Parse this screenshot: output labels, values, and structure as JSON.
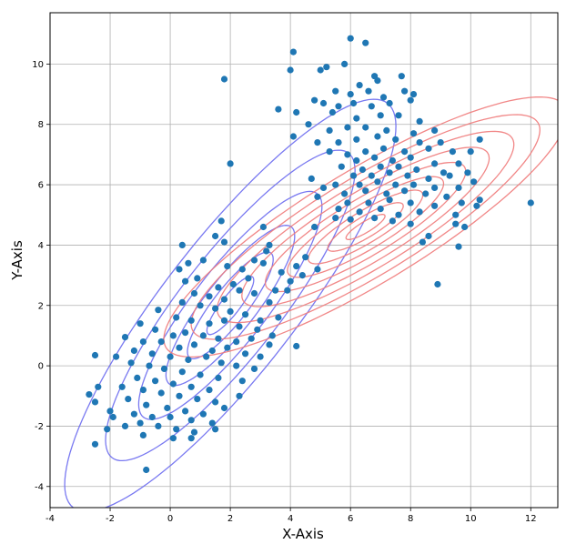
{
  "chart_data": {
    "type": "scatter",
    "xlabel": "X-Axis",
    "ylabel": "Y-Axis",
    "xlim": [
      -4,
      12.9
    ],
    "ylim": [
      -4.7,
      11.7
    ],
    "xticks": [
      -4,
      -2,
      0,
      2,
      4,
      6,
      8,
      10,
      12
    ],
    "yticks": [
      -4,
      -2,
      0,
      2,
      4,
      6,
      8,
      10
    ],
    "grid": true,
    "point_color": "#1f77b4",
    "contour_sets": [
      {
        "color": "#6a6af0",
        "center": [
          2.0,
          2.0
        ],
        "major_axis_angle_deg": 52,
        "semi_axes": [
          [
            1.2,
            0.31
          ],
          [
            2.2,
            0.57
          ],
          [
            3.3,
            0.86
          ],
          [
            4.7,
            1.22
          ],
          [
            6.4,
            1.66
          ],
          [
            8.5,
            2.2
          ]
        ]
      },
      {
        "color": "#f07a7a",
        "center": [
          6.5,
          4.6
        ],
        "major_axis_angle_deg": 31,
        "semi_axes": [
          [
            0.75,
            0.18
          ],
          [
            1.45,
            0.35
          ],
          [
            2.2,
            0.53
          ],
          [
            3.0,
            0.73
          ],
          [
            3.85,
            0.94
          ],
          [
            4.75,
            1.16
          ],
          [
            5.7,
            1.39
          ],
          [
            6.7,
            1.63
          ],
          [
            7.75,
            1.89
          ]
        ]
      }
    ],
    "points": [
      [
        6.0,
        10.85
      ],
      [
        6.5,
        10.7
      ],
      [
        4.1,
        10.4
      ],
      [
        4.0,
        9.8
      ],
      [
        5.0,
        9.8
      ],
      [
        5.2,
        9.9
      ],
      [
        5.8,
        10.0
      ],
      [
        1.8,
        9.5
      ],
      [
        6.8,
        9.6
      ],
      [
        7.7,
        9.6
      ],
      [
        6.3,
        9.3
      ],
      [
        6.9,
        9.45
      ],
      [
        5.5,
        9.1
      ],
      [
        6.0,
        9.0
      ],
      [
        6.6,
        9.1
      ],
      [
        7.1,
        8.9
      ],
      [
        7.8,
        9.1
      ],
      [
        8.1,
        9.0
      ],
      [
        4.8,
        8.8
      ],
      [
        3.6,
        8.5
      ],
      [
        5.1,
        8.7
      ],
      [
        5.6,
        8.6
      ],
      [
        6.1,
        8.7
      ],
      [
        6.7,
        8.6
      ],
      [
        7.3,
        8.7
      ],
      [
        8.0,
        8.8
      ],
      [
        4.2,
        8.4
      ],
      [
        5.4,
        8.4
      ],
      [
        6.2,
        8.2
      ],
      [
        7.0,
        8.3
      ],
      [
        7.6,
        8.3
      ],
      [
        8.3,
        8.1
      ],
      [
        4.6,
        8.0
      ],
      [
        5.3,
        7.8
      ],
      [
        5.9,
        7.9
      ],
      [
        6.5,
        7.9
      ],
      [
        7.2,
        7.8
      ],
      [
        8.1,
        7.7
      ],
      [
        8.8,
        7.8
      ],
      [
        4.1,
        7.6
      ],
      [
        4.9,
        7.4
      ],
      [
        5.6,
        7.4
      ],
      [
        6.2,
        7.5
      ],
      [
        6.9,
        7.6
      ],
      [
        7.5,
        7.5
      ],
      [
        8.3,
        7.4
      ],
      [
        9.0,
        7.4
      ],
      [
        10.3,
        7.5
      ],
      [
        5.3,
        7.1
      ],
      [
        5.9,
        7.0
      ],
      [
        6.5,
        7.1
      ],
      [
        7.1,
        7.2
      ],
      [
        7.8,
        7.1
      ],
      [
        8.6,
        7.2
      ],
      [
        9.4,
        7.1
      ],
      [
        10.0,
        7.1
      ],
      [
        6.2,
        6.8
      ],
      [
        6.8,
        6.9
      ],
      [
        7.4,
        6.8
      ],
      [
        8.0,
        6.9
      ],
      [
        8.8,
        6.7
      ],
      [
        9.6,
        6.7
      ],
      [
        5.7,
        6.6
      ],
      [
        6.4,
        6.5
      ],
      [
        7.0,
        6.6
      ],
      [
        7.6,
        6.6
      ],
      [
        8.2,
        6.5
      ],
      [
        9.1,
        6.4
      ],
      [
        9.9,
        6.4
      ],
      [
        6.1,
        6.3
      ],
      [
        6.7,
        6.3
      ],
      [
        7.3,
        6.4
      ],
      [
        7.9,
        6.3
      ],
      [
        8.6,
        6.2
      ],
      [
        9.3,
        6.3
      ],
      [
        10.1,
        6.1
      ],
      [
        4.7,
        6.2
      ],
      [
        5.5,
        6.0
      ],
      [
        6.3,
        6.0
      ],
      [
        6.9,
        6.1
      ],
      [
        7.5,
        6.0
      ],
      [
        8.1,
        6.0
      ],
      [
        8.8,
        5.9
      ],
      [
        9.6,
        5.9
      ],
      [
        5.1,
        5.9
      ],
      [
        5.8,
        5.7
      ],
      [
        6.5,
        5.8
      ],
      [
        7.2,
        5.7
      ],
      [
        7.8,
        5.8
      ],
      [
        8.5,
        5.7
      ],
      [
        9.2,
        5.6
      ],
      [
        10.3,
        5.5
      ],
      [
        5.9,
        5.4
      ],
      [
        6.6,
        5.4
      ],
      [
        7.3,
        5.5
      ],
      [
        8.0,
        5.4
      ],
      [
        8.8,
        5.3
      ],
      [
        9.7,
        5.4
      ],
      [
        4.9,
        5.6
      ],
      [
        5.6,
        5.2
      ],
      [
        6.3,
        5.1
      ],
      [
        7.0,
        5.2
      ],
      [
        7.6,
        5.0
      ],
      [
        8.3,
        5.1
      ],
      [
        9.5,
        5.0
      ],
      [
        10.2,
        5.3
      ],
      [
        5.5,
        4.9
      ],
      [
        6.0,
        4.85
      ],
      [
        6.8,
        4.9
      ],
      [
        7.4,
        4.8
      ],
      [
        8.0,
        4.7
      ],
      [
        9.5,
        4.7
      ],
      [
        9.8,
        4.6
      ],
      [
        4.8,
        4.6
      ],
      [
        3.1,
        4.6
      ],
      [
        8.4,
        4.1
      ],
      [
        8.6,
        4.3
      ],
      [
        9.6,
        3.95
      ],
      [
        12.0,
        5.4
      ],
      [
        8.9,
        2.7
      ],
      [
        1.7,
        4.8
      ],
      [
        2.0,
        6.7
      ],
      [
        1.5,
        4.3
      ],
      [
        1.8,
        4.1
      ],
      [
        3.3,
        4.0
      ],
      [
        0.4,
        4.0
      ],
      [
        3.2,
        3.8
      ],
      [
        0.6,
        3.4
      ],
      [
        1.1,
        3.5
      ],
      [
        2.8,
        3.5
      ],
      [
        3.1,
        3.4
      ],
      [
        3.7,
        3.1
      ],
      [
        4.2,
        3.3
      ],
      [
        4.5,
        3.6
      ],
      [
        4.9,
        3.2
      ],
      [
        2.4,
        3.2
      ],
      [
        1.9,
        3.3
      ],
      [
        0.3,
        3.2
      ],
      [
        0.9,
        2.9
      ],
      [
        1.6,
        2.6
      ],
      [
        2.1,
        2.7
      ],
      [
        2.6,
        2.9
      ],
      [
        3.5,
        2.5
      ],
      [
        4.0,
        2.8
      ],
      [
        4.4,
        3.0
      ],
      [
        0.5,
        2.8
      ],
      [
        1.3,
        2.3
      ],
      [
        1.8,
        2.2
      ],
      [
        2.3,
        2.5
      ],
      [
        2.8,
        2.4
      ],
      [
        3.3,
        2.1
      ],
      [
        3.9,
        2.5
      ],
      [
        0.8,
        2.4
      ],
      [
        0.4,
        2.1
      ],
      [
        1.0,
        2.0
      ],
      [
        1.5,
        1.9
      ],
      [
        2.0,
        1.8
      ],
      [
        2.5,
        1.7
      ],
      [
        3.0,
        1.5
      ],
      [
        3.6,
        1.6
      ],
      [
        -0.4,
        1.85
      ],
      [
        0.2,
        1.6
      ],
      [
        0.7,
        1.5
      ],
      [
        1.3,
        1.4
      ],
      [
        1.8,
        1.5
      ],
      [
        2.3,
        1.3
      ],
      [
        2.9,
        1.2
      ],
      [
        3.4,
        1.0
      ],
      [
        -1.0,
        1.4
      ],
      [
        -0.5,
        1.2
      ],
      [
        0.1,
        1.0
      ],
      [
        0.5,
        1.1
      ],
      [
        1.1,
        1.0
      ],
      [
        1.6,
        0.9
      ],
      [
        2.2,
        0.8
      ],
      [
        2.7,
        0.9
      ],
      [
        3.3,
        0.7
      ],
      [
        4.2,
        0.65
      ],
      [
        -1.5,
        0.95
      ],
      [
        -0.9,
        0.8
      ],
      [
        -0.3,
        0.8
      ],
      [
        0.3,
        0.6
      ],
      [
        0.8,
        0.7
      ],
      [
        1.4,
        0.5
      ],
      [
        1.9,
        0.6
      ],
      [
        2.5,
        0.4
      ],
      [
        3.0,
        0.3
      ],
      [
        -1.2,
        0.5
      ],
      [
        -0.6,
        0.4
      ],
      [
        0.0,
        0.3
      ],
      [
        0.6,
        0.2
      ],
      [
        1.2,
        0.3
      ],
      [
        1.7,
        0.1
      ],
      [
        2.2,
        0.0
      ],
      [
        2.8,
        -0.1
      ],
      [
        -1.8,
        0.3
      ],
      [
        -1.3,
        0.1
      ],
      [
        -0.7,
        0.0
      ],
      [
        -0.2,
        -0.1
      ],
      [
        0.4,
        -0.2
      ],
      [
        1.0,
        -0.3
      ],
      [
        1.6,
        -0.4
      ],
      [
        2.4,
        -0.5
      ],
      [
        -2.5,
        0.35
      ],
      [
        -1.1,
        -0.4
      ],
      [
        -0.5,
        -0.5
      ],
      [
        0.1,
        -0.6
      ],
      [
        0.7,
        -0.7
      ],
      [
        1.3,
        -0.8
      ],
      [
        -1.6,
        -0.7
      ],
      [
        -0.9,
        -0.8
      ],
      [
        -0.3,
        -0.9
      ],
      [
        0.3,
        -1.0
      ],
      [
        0.9,
        -1.1
      ],
      [
        1.5,
        -1.2
      ],
      [
        2.3,
        -1.0
      ],
      [
        -2.4,
        -0.7
      ],
      [
        -2.7,
        -0.95
      ],
      [
        -1.4,
        -1.1
      ],
      [
        -0.8,
        -1.3
      ],
      [
        -0.1,
        -1.4
      ],
      [
        0.5,
        -1.5
      ],
      [
        1.1,
        -1.6
      ],
      [
        1.8,
        -1.4
      ],
      [
        -2.5,
        -1.2
      ],
      [
        -2.0,
        -1.5
      ],
      [
        -1.2,
        -1.6
      ],
      [
        -0.6,
        -1.7
      ],
      [
        0.0,
        -1.7
      ],
      [
        0.7,
        -1.8
      ],
      [
        1.4,
        -1.9
      ],
      [
        -1.9,
        -1.7
      ],
      [
        -1.0,
        -1.9
      ],
      [
        -0.4,
        -2.0
      ],
      [
        0.2,
        -2.1
      ],
      [
        0.8,
        -2.2
      ],
      [
        1.5,
        -2.1
      ],
      [
        -2.1,
        -2.1
      ],
      [
        -1.5,
        -2.0
      ],
      [
        -0.9,
        -2.3
      ],
      [
        0.1,
        -2.4
      ],
      [
        0.7,
        -2.4
      ],
      [
        -2.5,
        -2.6
      ],
      [
        -0.8,
        -3.45
      ]
    ]
  }
}
